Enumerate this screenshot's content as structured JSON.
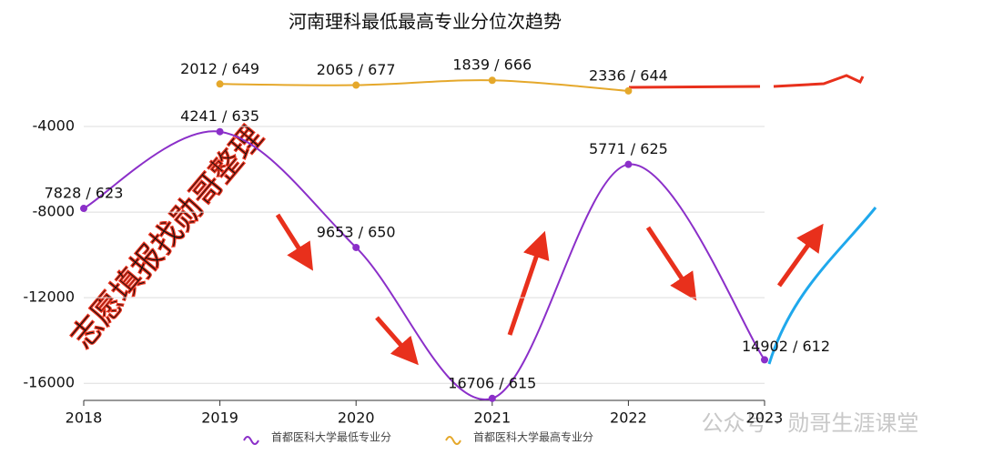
{
  "chart_data": {
    "type": "line",
    "title": "河南理科最低最高专业分位次趋势",
    "categories": [
      "2018",
      "2019",
      "2020",
      "2021",
      "2022",
      "2023"
    ],
    "series": [
      {
        "name": "首都医科大学最低专业分",
        "color": "#8b2fc9",
        "values": [
          -7828,
          -4241,
          -9653,
          -16706,
          -5771,
          -14902
        ],
        "value_labels": [
          "7828 / 623",
          "4241 / 635",
          "9653 / 650",
          "16706 / 615",
          "5771 / 625",
          "14902 / 612"
        ]
      },
      {
        "name": "首都医科大学最高专业分",
        "color": "#e5a82b",
        "values": [
          null,
          -2012,
          -2065,
          -1839,
          -2336,
          null
        ],
        "value_labels": [
          null,
          "2012 / 649",
          "2065 / 677",
          "1839 / 666",
          "2336 / 644",
          null
        ]
      }
    ],
    "ylim": [
      -16800,
      0
    ],
    "yticks": [
      -4000,
      -8000,
      -12000,
      -16000
    ],
    "grid": true,
    "legend": "bottom",
    "annotations": [
      "志愿填报找勋哥整理",
      "公众号 · 勋哥生涯课堂"
    ]
  }
}
